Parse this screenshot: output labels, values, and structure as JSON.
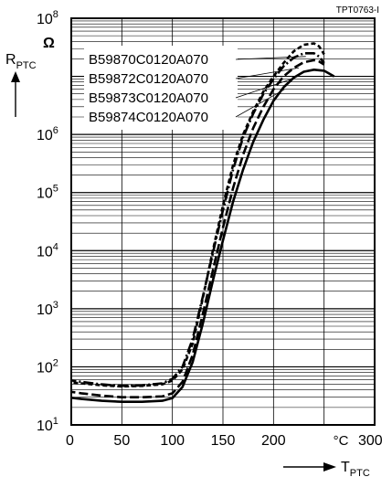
{
  "figure_id": "TPT0763-I",
  "chart_data": {
    "type": "line",
    "ylabel_main": "R",
    "ylabel_sub": "PTC",
    "y_unit": "Ω",
    "xlabel_main": "T",
    "xlabel_sub": "PTC",
    "x_unit": "°C",
    "y_scale": "log",
    "xlim": [
      0,
      300
    ],
    "ylim": [
      10,
      100000000
    ],
    "x_ticks": [
      "0",
      "50",
      "100",
      "150",
      "200",
      "300"
    ],
    "y_ticks": [
      {
        "base": "10",
        "exp": "1"
      },
      {
        "base": "10",
        "exp": "2"
      },
      {
        "base": "10",
        "exp": "3"
      },
      {
        "base": "10",
        "exp": "4"
      },
      {
        "base": "10",
        "exp": "5"
      },
      {
        "base": "10",
        "exp": "6"
      },
      {
        "base": "10",
        "exp": "8"
      }
    ],
    "grid": true,
    "legend_position": "upper-left",
    "series": [
      {
        "name": "B59870C0120A070",
        "dash": "short-dash",
        "points": [
          [
            -5,
            55
          ],
          [
            10,
            52
          ],
          [
            30,
            48
          ],
          [
            50,
            46
          ],
          [
            70,
            47
          ],
          [
            90,
            50
          ],
          [
            100,
            58
          ],
          [
            110,
            90
          ],
          [
            120,
            250
          ],
          [
            130,
            1500
          ],
          [
            140,
            10000
          ],
          [
            150,
            60000
          ],
          [
            160,
            300000
          ],
          [
            170,
            1000000
          ],
          [
            180,
            2500000
          ],
          [
            190,
            5500000
          ],
          [
            200,
            10000000
          ],
          [
            210,
            17000000
          ],
          [
            220,
            27000000
          ],
          [
            230,
            35000000
          ],
          [
            240,
            37000000
          ],
          [
            245,
            33000000
          ],
          [
            250,
            24000000
          ]
        ]
      },
      {
        "name": "B59872C0120A070",
        "dash": "long-dash-dot",
        "points": [
          [
            -5,
            60
          ],
          [
            10,
            55
          ],
          [
            30,
            50
          ],
          [
            50,
            47
          ],
          [
            70,
            48
          ],
          [
            90,
            52
          ],
          [
            100,
            62
          ],
          [
            110,
            100
          ],
          [
            120,
            300
          ],
          [
            130,
            1600
          ],
          [
            140,
            9000
          ],
          [
            150,
            50000
          ],
          [
            160,
            250000
          ],
          [
            170,
            900000
          ],
          [
            180,
            2300000
          ],
          [
            190,
            5000000
          ],
          [
            200,
            9000000
          ],
          [
            210,
            15000000
          ],
          [
            220,
            21000000
          ],
          [
            230,
            25000000
          ],
          [
            240,
            25000000
          ],
          [
            245,
            22000000
          ],
          [
            250,
            17000000
          ]
        ]
      },
      {
        "name": "B59873C0120A070",
        "dash": "long-dash",
        "points": [
          [
            -5,
            38
          ],
          [
            10,
            35
          ],
          [
            30,
            32
          ],
          [
            50,
            30
          ],
          [
            70,
            30
          ],
          [
            90,
            31
          ],
          [
            100,
            35
          ],
          [
            110,
            55
          ],
          [
            120,
            160
          ],
          [
            130,
            800
          ],
          [
            140,
            4500
          ],
          [
            150,
            25000
          ],
          [
            160,
            120000
          ],
          [
            170,
            450000
          ],
          [
            180,
            1300000
          ],
          [
            190,
            3000000
          ],
          [
            200,
            6000000
          ],
          [
            210,
            10000000
          ],
          [
            220,
            14000000
          ],
          [
            230,
            17500000
          ],
          [
            240,
            19000000
          ],
          [
            245,
            18000000
          ],
          [
            250,
            16000000
          ]
        ]
      },
      {
        "name": "B59874C0120A070",
        "dash": "solid",
        "points": [
          [
            -5,
            30
          ],
          [
            10,
            28
          ],
          [
            30,
            26
          ],
          [
            50,
            25
          ],
          [
            70,
            25
          ],
          [
            90,
            26
          ],
          [
            100,
            29
          ],
          [
            110,
            45
          ],
          [
            120,
            120
          ],
          [
            130,
            550
          ],
          [
            140,
            3000
          ],
          [
            150,
            15000
          ],
          [
            160,
            70000
          ],
          [
            170,
            250000
          ],
          [
            180,
            750000
          ],
          [
            190,
            1800000
          ],
          [
            200,
            3800000
          ],
          [
            210,
            6500000
          ],
          [
            220,
            9500000
          ],
          [
            230,
            12000000
          ],
          [
            240,
            13000000
          ],
          [
            250,
            12500000
          ],
          [
            260,
            10000000
          ]
        ]
      }
    ]
  }
}
